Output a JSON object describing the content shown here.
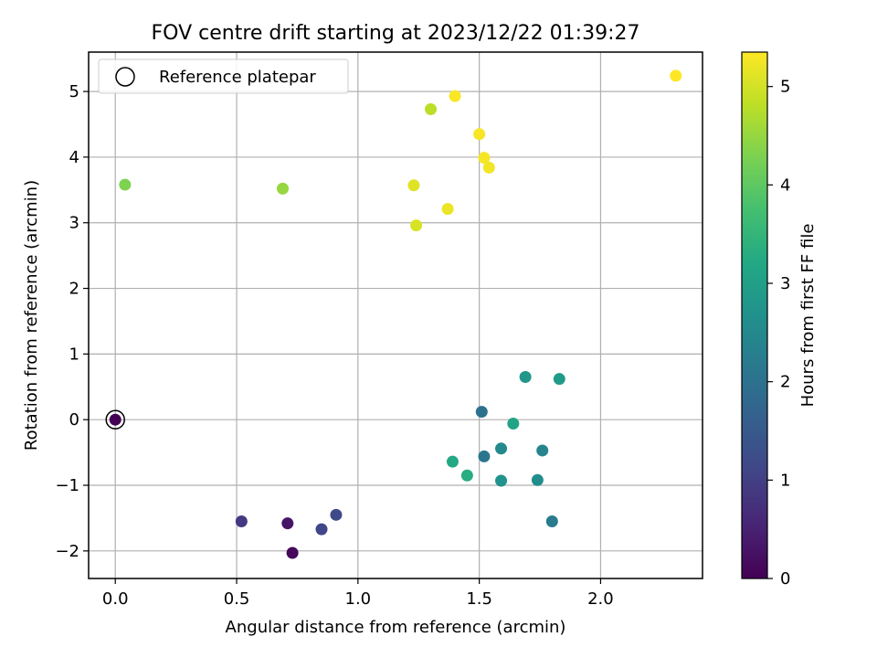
{
  "chart_data": {
    "type": "scatter",
    "title": "FOV centre drift starting at 2023/12/22 01:39:27",
    "xlabel": "Angular distance from reference (arcmin)",
    "ylabel": "Rotation from reference (arcmin)",
    "xlim": [
      -0.11,
      2.42
    ],
    "ylim": [
      -2.42,
      5.6
    ],
    "xticks": [
      0.0,
      0.5,
      1.0,
      1.5,
      2.0
    ],
    "xtick_labels": [
      "0.0",
      "0.5",
      "1.0",
      "1.5",
      "2.0"
    ],
    "yticks": [
      -2,
      -1,
      0,
      1,
      2,
      3,
      4,
      5
    ],
    "ytick_labels": [
      "−2",
      "−1",
      "0",
      "1",
      "2",
      "3",
      "4",
      "5"
    ],
    "grid": true,
    "legend": {
      "position": "top-left",
      "entries": [
        "Reference platepar"
      ]
    },
    "colorbar": {
      "label": "Hours from first FF file",
      "colormap": "viridis",
      "range": [
        0,
        5.35
      ],
      "ticks": [
        0,
        1,
        2,
        3,
        4,
        5
      ],
      "tick_labels": [
        "0",
        "1",
        "2",
        "3",
        "4",
        "5"
      ]
    },
    "reference_point": {
      "x": 0.0,
      "y": 0.0
    },
    "points": [
      {
        "x": 0.0,
        "y": 0.0,
        "h": 0.0
      },
      {
        "x": 0.73,
        "y": -2.03,
        "h": 0.1
      },
      {
        "x": 0.71,
        "y": -1.58,
        "h": 0.3
      },
      {
        "x": 0.52,
        "y": -1.55,
        "h": 0.9
      },
      {
        "x": 0.85,
        "y": -1.67,
        "h": 1.1
      },
      {
        "x": 0.91,
        "y": -1.45,
        "h": 1.2
      },
      {
        "x": 1.51,
        "y": 0.12,
        "h": 2.0
      },
      {
        "x": 1.52,
        "y": -0.56,
        "h": 2.1
      },
      {
        "x": 1.8,
        "y": -1.55,
        "h": 2.2
      },
      {
        "x": 1.76,
        "y": -0.47,
        "h": 2.4
      },
      {
        "x": 1.59,
        "y": -0.44,
        "h": 2.5
      },
      {
        "x": 1.74,
        "y": -0.92,
        "h": 2.6
      },
      {
        "x": 1.59,
        "y": -0.93,
        "h": 2.7
      },
      {
        "x": 1.69,
        "y": 0.65,
        "h": 2.8
      },
      {
        "x": 1.83,
        "y": 0.62,
        "h": 2.9
      },
      {
        "x": 1.64,
        "y": -0.06,
        "h": 3.1
      },
      {
        "x": 1.39,
        "y": -0.64,
        "h": 3.2
      },
      {
        "x": 1.45,
        "y": -0.85,
        "h": 3.3
      },
      {
        "x": 0.04,
        "y": 3.58,
        "h": 4.3
      },
      {
        "x": 0.69,
        "y": 3.52,
        "h": 4.5
      },
      {
        "x": 1.3,
        "y": 4.73,
        "h": 4.8
      },
      {
        "x": 1.24,
        "y": 2.96,
        "h": 5.05
      },
      {
        "x": 1.23,
        "y": 3.57,
        "h": 5.1
      },
      {
        "x": 1.37,
        "y": 3.21,
        "h": 5.2
      },
      {
        "x": 1.54,
        "y": 3.84,
        "h": 5.25
      },
      {
        "x": 1.52,
        "y": 3.99,
        "h": 5.28
      },
      {
        "x": 1.5,
        "y": 4.35,
        "h": 5.3
      },
      {
        "x": 1.4,
        "y": 4.93,
        "h": 5.32
      },
      {
        "x": 2.31,
        "y": 5.24,
        "h": 5.35
      }
    ]
  }
}
